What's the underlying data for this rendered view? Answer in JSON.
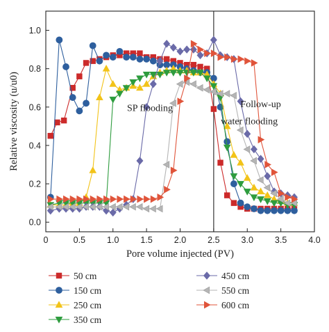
{
  "chart_data": {
    "type": "line",
    "xlabel": "Pore volume injected (PV)",
    "ylabel": "Relative viscosity (u/u0)",
    "xlim": [
      0,
      4.0
    ],
    "ylim": [
      -0.05,
      1.1
    ],
    "xticks": [
      0,
      0.5,
      1.0,
      1.5,
      2.0,
      2.5,
      3.0,
      3.5,
      4.0
    ],
    "yticks": [
      0.0,
      0.2,
      0.4,
      0.6,
      0.8,
      1.0
    ],
    "xtick_labels": [
      "0",
      "0.5",
      "1.0",
      "1.5",
      "2.0",
      "2.5",
      "3.0",
      "3.5",
      "4.0"
    ],
    "ytick_labels": [
      "0.0",
      "0.2",
      "0.4",
      "0.6",
      "0.8",
      "1.0"
    ],
    "vline_x": 2.5,
    "annotations": [
      {
        "text": "SP flooding",
        "x": 1.55,
        "y": 0.58
      },
      {
        "text": "Follow-up",
        "x": 3.2,
        "y": 0.6
      },
      {
        "text": "water flooding",
        "x": 3.03,
        "y": 0.51
      }
    ],
    "legend_placement": "below",
    "series": [
      {
        "name": "50 cm",
        "color": "#cc2a2a",
        "marker": "square",
        "x": [
          0.07,
          0.17,
          0.27,
          0.4,
          0.5,
          0.6,
          0.7,
          0.8,
          0.9,
          1.0,
          1.1,
          1.2,
          1.3,
          1.4,
          1.5,
          1.6,
          1.7,
          1.8,
          1.9,
          2.0,
          2.1,
          2.2,
          2.3,
          2.4,
          2.5,
          2.6,
          2.7,
          2.8,
          2.9,
          3.0,
          3.1,
          3.2,
          3.3,
          3.4,
          3.5,
          3.6,
          3.7
        ],
        "y": [
          0.45,
          0.52,
          0.53,
          0.7,
          0.76,
          0.83,
          0.84,
          0.85,
          0.86,
          0.87,
          0.87,
          0.88,
          0.88,
          0.88,
          0.86,
          0.86,
          0.85,
          0.85,
          0.84,
          0.83,
          0.82,
          0.82,
          0.81,
          0.8,
          0.59,
          0.31,
          0.14,
          0.1,
          0.08,
          0.07,
          0.07,
          0.07,
          0.07,
          0.07,
          0.07,
          0.07,
          0.07
        ]
      },
      {
        "name": "150 cm",
        "color": "#2e5f9e",
        "marker": "circle",
        "x": [
          0.07,
          0.2,
          0.3,
          0.4,
          0.5,
          0.6,
          0.7,
          0.8,
          0.9,
          1.0,
          1.1,
          1.2,
          1.3,
          1.4,
          1.5,
          1.6,
          1.7,
          1.8,
          1.9,
          2.0,
          2.1,
          2.2,
          2.3,
          2.4,
          2.5,
          2.6,
          2.7,
          2.8,
          2.9,
          3.0,
          3.1,
          3.2,
          3.3,
          3.4,
          3.5,
          3.6,
          3.7
        ],
        "y": [
          0.13,
          0.95,
          0.81,
          0.65,
          0.58,
          0.62,
          0.92,
          0.84,
          0.87,
          0.86,
          0.89,
          0.86,
          0.86,
          0.85,
          0.85,
          0.84,
          0.82,
          0.82,
          0.82,
          0.81,
          0.8,
          0.79,
          0.78,
          0.78,
          0.75,
          0.6,
          0.42,
          0.2,
          0.1,
          0.08,
          0.07,
          0.06,
          0.06,
          0.06,
          0.06,
          0.06,
          0.06
        ]
      },
      {
        "name": "250 cm",
        "color": "#f2c318",
        "marker": "triangle-up",
        "x": [
          0.07,
          0.2,
          0.3,
          0.4,
          0.5,
          0.6,
          0.7,
          0.8,
          0.9,
          1.0,
          1.1,
          1.2,
          1.3,
          1.4,
          1.5,
          1.6,
          1.7,
          1.8,
          1.9,
          2.0,
          2.1,
          2.2,
          2.3,
          2.4,
          2.5,
          2.6,
          2.7,
          2.8,
          2.9,
          3.0,
          3.1,
          3.2,
          3.3,
          3.4,
          3.5,
          3.6,
          3.7
        ],
        "y": [
          0.09,
          0.09,
          0.09,
          0.1,
          0.1,
          0.13,
          0.27,
          0.65,
          0.8,
          0.72,
          0.69,
          0.7,
          0.71,
          0.7,
          0.72,
          0.76,
          0.78,
          0.79,
          0.8,
          0.79,
          0.79,
          0.78,
          0.78,
          0.77,
          0.72,
          0.67,
          0.5,
          0.35,
          0.31,
          0.23,
          0.18,
          0.16,
          0.14,
          0.12,
          0.11,
          0.1,
          0.1
        ]
      },
      {
        "name": "350 cm",
        "color": "#2e9c3e",
        "marker": "triangle-down",
        "x": [
          0.07,
          0.2,
          0.3,
          0.4,
          0.5,
          0.6,
          0.7,
          0.8,
          0.9,
          1.0,
          1.1,
          1.2,
          1.3,
          1.4,
          1.5,
          1.6,
          1.7,
          1.8,
          1.9,
          2.0,
          2.1,
          2.2,
          2.3,
          2.4,
          2.5,
          2.6,
          2.7,
          2.8,
          2.9,
          3.0,
          3.1,
          3.2,
          3.3,
          3.4,
          3.5,
          3.6,
          3.7
        ],
        "y": [
          0.09,
          0.1,
          0.1,
          0.1,
          0.1,
          0.1,
          0.1,
          0.1,
          0.1,
          0.64,
          0.67,
          0.7,
          0.73,
          0.75,
          0.77,
          0.77,
          0.77,
          0.78,
          0.78,
          0.78,
          0.78,
          0.78,
          0.78,
          0.75,
          0.71,
          0.65,
          0.39,
          0.24,
          0.2,
          0.16,
          0.13,
          0.12,
          0.11,
          0.1,
          0.1,
          0.09,
          0.09
        ]
      },
      {
        "name": "450 cm",
        "color": "#6a6aa8",
        "marker": "diamond",
        "x": [
          0.07,
          0.2,
          0.3,
          0.4,
          0.5,
          0.6,
          0.7,
          0.8,
          0.9,
          1.0,
          1.1,
          1.2,
          1.3,
          1.4,
          1.5,
          1.6,
          1.7,
          1.8,
          1.9,
          2.0,
          2.1,
          2.2,
          2.3,
          2.4,
          2.5,
          2.6,
          2.7,
          2.8,
          2.9,
          3.0,
          3.1,
          3.2,
          3.3,
          3.4,
          3.5,
          3.6,
          3.7
        ],
        "y": [
          0.06,
          0.07,
          0.07,
          0.07,
          0.07,
          0.08,
          0.08,
          0.08,
          0.06,
          0.05,
          0.07,
          0.09,
          0.12,
          0.32,
          0.6,
          0.72,
          0.84,
          0.93,
          0.91,
          0.89,
          0.9,
          0.9,
          0.87,
          0.88,
          0.95,
          0.87,
          0.86,
          0.85,
          0.63,
          0.46,
          0.38,
          0.33,
          0.24,
          0.16,
          0.15,
          0.14,
          0.13
        ]
      },
      {
        "name": "550 cm",
        "color": "#b5b5b5",
        "marker": "triangle-left",
        "x": [
          0.07,
          0.2,
          0.3,
          0.4,
          0.5,
          0.6,
          0.7,
          0.8,
          0.9,
          1.0,
          1.1,
          1.2,
          1.3,
          1.4,
          1.5,
          1.6,
          1.7,
          1.8,
          1.9,
          2.0,
          2.1,
          2.2,
          2.3,
          2.4,
          2.5,
          2.6,
          2.7,
          2.8,
          2.9,
          3.0,
          3.1,
          3.2,
          3.3,
          3.4,
          3.5,
          3.6,
          3.7
        ],
        "y": [
          0.08,
          0.08,
          0.08,
          0.08,
          0.08,
          0.08,
          0.08,
          0.08,
          0.08,
          0.08,
          0.08,
          0.08,
          0.08,
          0.08,
          0.07,
          0.07,
          0.07,
          0.3,
          0.62,
          0.72,
          0.73,
          0.72,
          0.7,
          0.69,
          0.68,
          0.67,
          0.67,
          0.66,
          0.48,
          0.38,
          0.32,
          0.22,
          0.18,
          0.15,
          0.12,
          0.1,
          0.1
        ]
      },
      {
        "name": "600 cm",
        "color": "#e0543a",
        "marker": "triangle-right",
        "x": [
          0.07,
          0.2,
          0.3,
          0.4,
          0.5,
          0.6,
          0.7,
          0.8,
          0.9,
          1.0,
          1.1,
          1.2,
          1.3,
          1.4,
          1.5,
          1.6,
          1.7,
          1.8,
          1.9,
          2.0,
          2.1,
          2.2,
          2.3,
          2.4,
          2.5,
          2.6,
          2.7,
          2.8,
          2.9,
          3.0,
          3.1,
          3.2,
          3.3,
          3.4,
          3.5,
          3.6,
          3.7
        ],
        "y": [
          0.12,
          0.12,
          0.12,
          0.12,
          0.12,
          0.12,
          0.12,
          0.12,
          0.12,
          0.12,
          0.12,
          0.12,
          0.12,
          0.12,
          0.12,
          0.12,
          0.13,
          0.17,
          0.27,
          0.63,
          0.75,
          0.93,
          0.9,
          0.88,
          0.88,
          0.86,
          0.86,
          0.85,
          0.85,
          0.84,
          0.83,
          0.43,
          0.3,
          0.26,
          0.15,
          0.13,
          0.12
        ]
      }
    ]
  }
}
